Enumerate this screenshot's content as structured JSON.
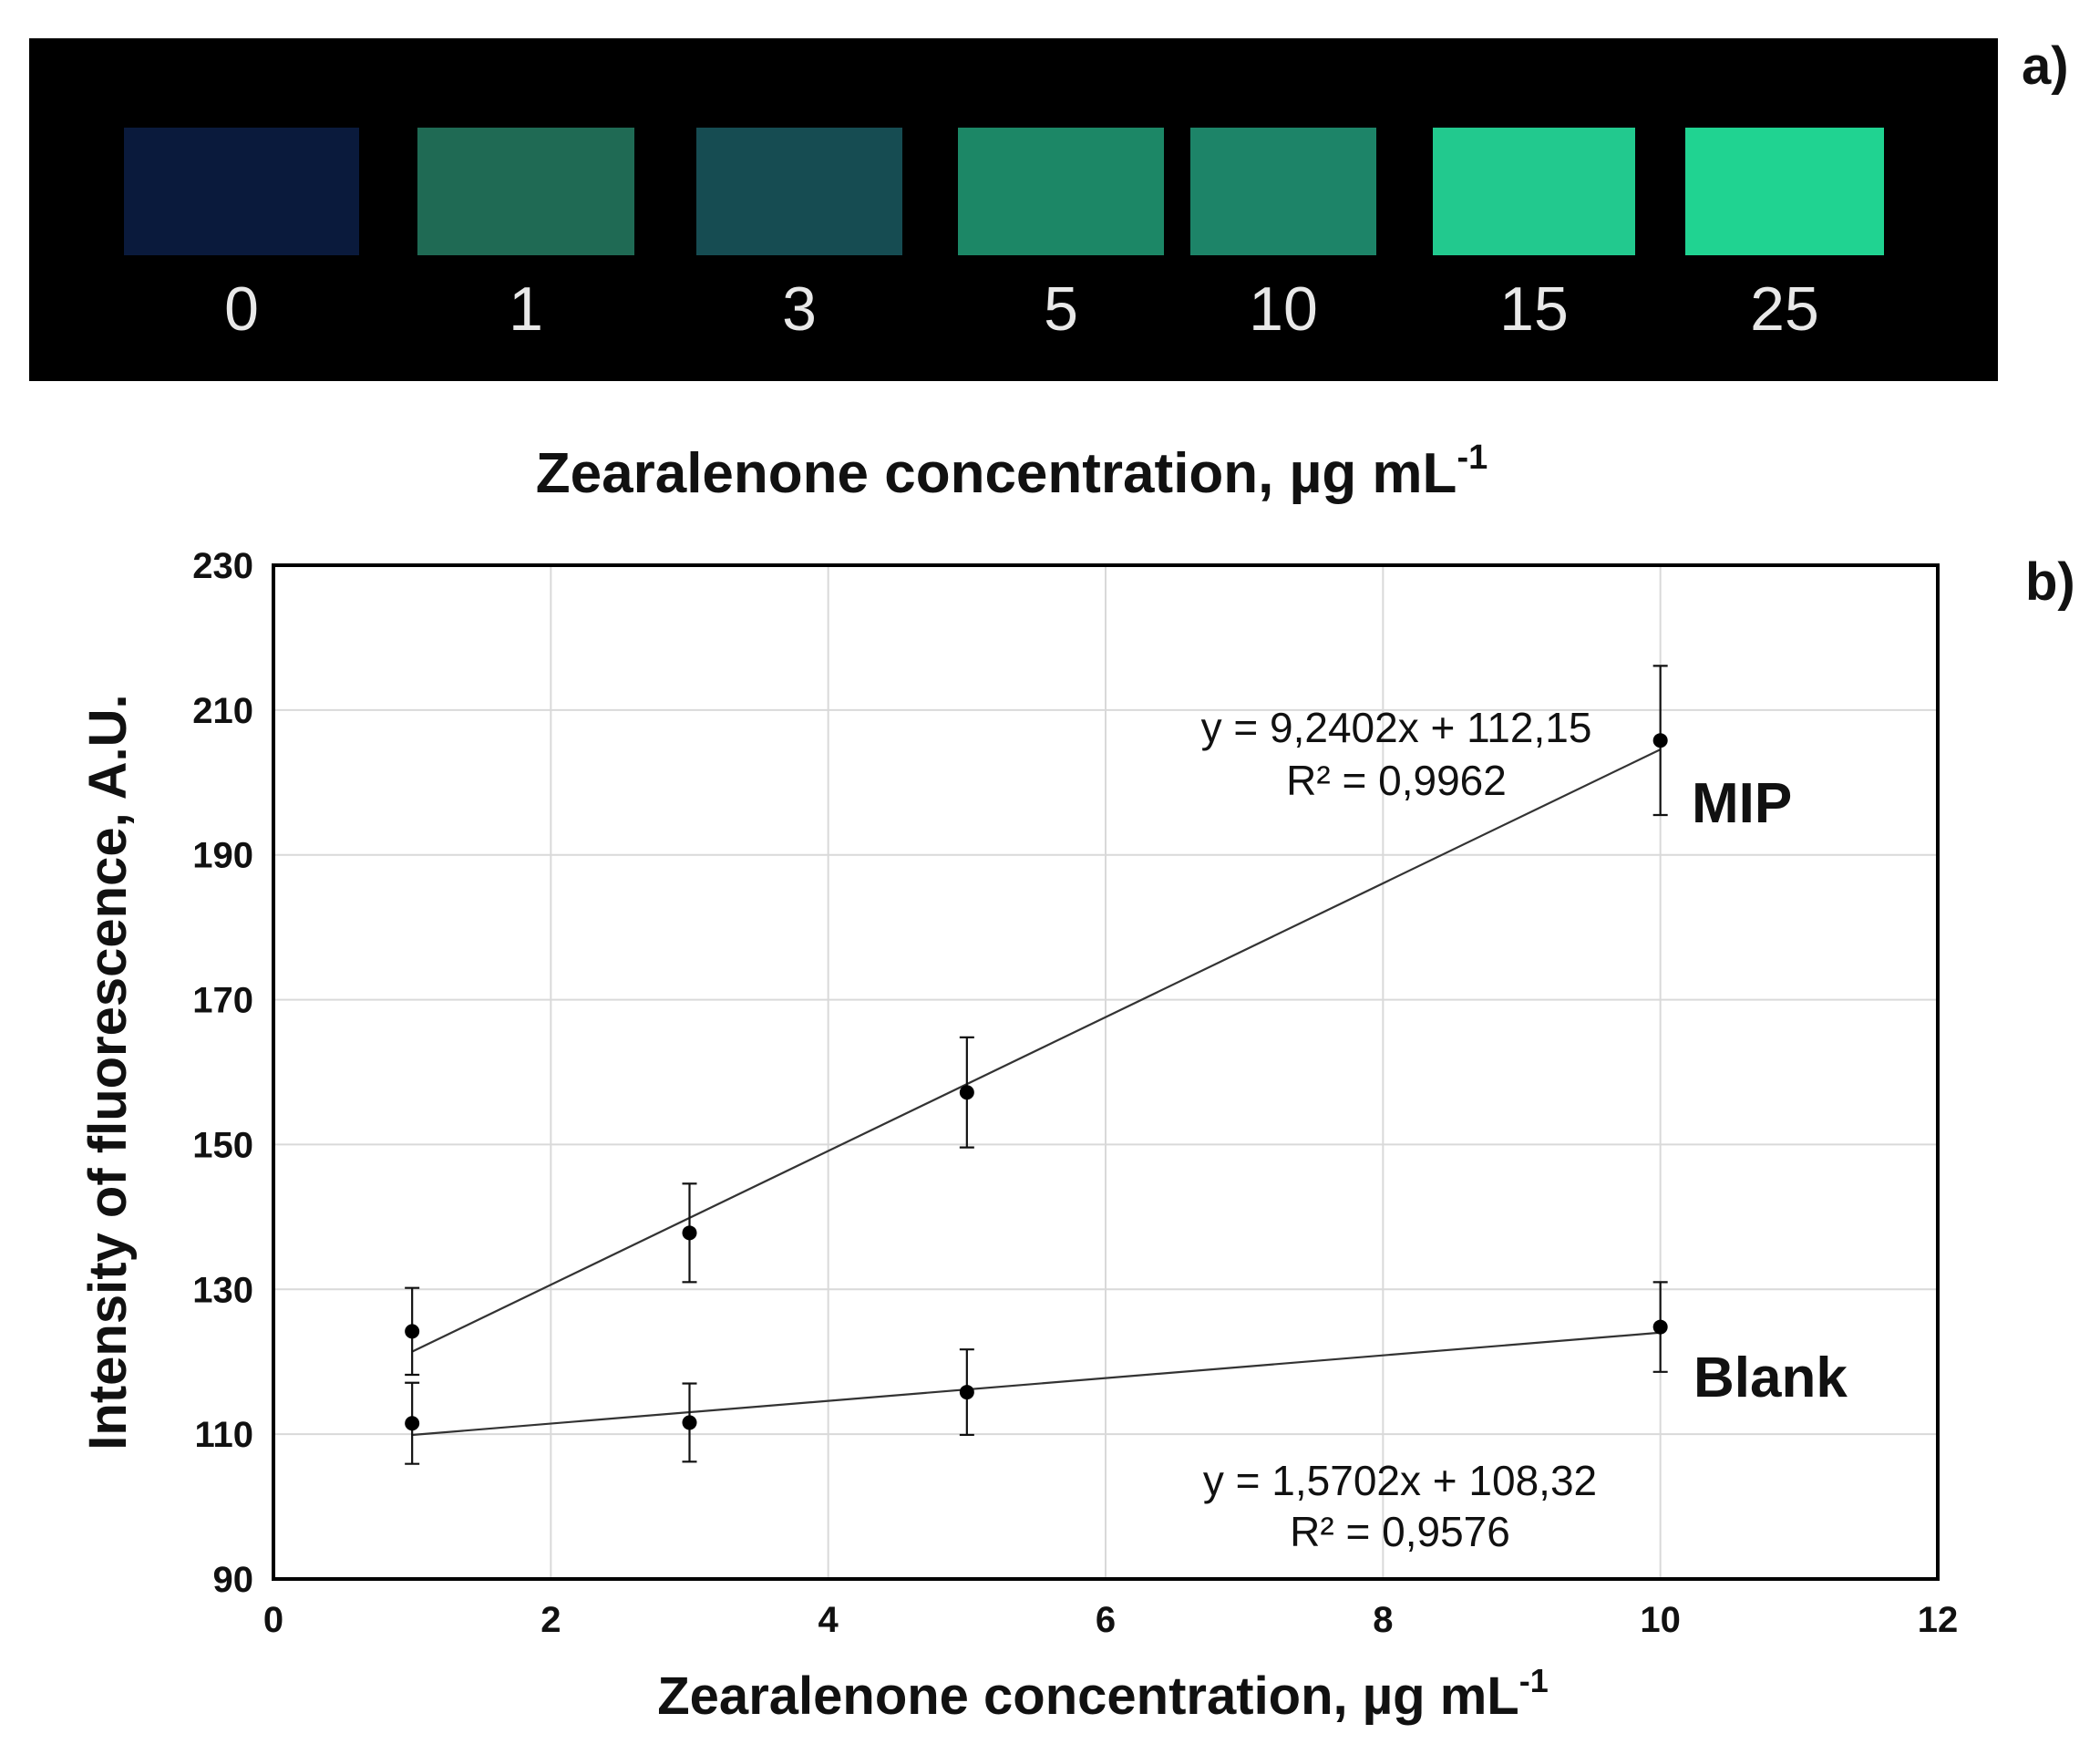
{
  "photo": {
    "panel_label": "a)",
    "strips": [
      {
        "label": "0",
        "color": "#0a1a3c"
      },
      {
        "label": "1",
        "color": "#1f6a54"
      },
      {
        "label": "3",
        "color": "#164c52"
      },
      {
        "label": "5",
        "color": "#1c8766"
      },
      {
        "label": "10",
        "color": "#1d8468"
      },
      {
        "label": "15",
        "color": "#22c98e"
      },
      {
        "label": "25",
        "color": "#20d391"
      }
    ],
    "caption": "Zearalenone concentration, µg mL",
    "caption_sup": "-1"
  },
  "chart_data": {
    "type": "scatter",
    "panel_label": "b)",
    "xlabel": "Zearalenone concentration, µg mL",
    "xlabel_sup": "-1",
    "ylabel": "Intensity of fluorescence, A.U.",
    "xlim": [
      0,
      12
    ],
    "ylim": [
      90,
      230
    ],
    "xticks": [
      0,
      2,
      4,
      6,
      8,
      10,
      12
    ],
    "yticks": [
      90,
      110,
      130,
      150,
      170,
      190,
      210,
      230
    ],
    "grid": true,
    "series": [
      {
        "name": "MIP",
        "x": [
          1,
          3,
          5,
          10
        ],
        "y": [
          124.2,
          137.8,
          157.2,
          205.8
        ],
        "yerr": [
          6.0,
          6.8,
          7.6,
          10.3
        ],
        "trendline": {
          "slope": 9.2402,
          "intercept": 112.15
        },
        "equation": "y = 9,2402x + 112,15",
        "r2": "R² = 0,9962"
      },
      {
        "name": "Blank",
        "x": [
          1,
          3,
          5,
          10
        ],
        "y": [
          111.5,
          111.6,
          115.8,
          124.8
        ],
        "yerr": [
          5.6,
          5.4,
          5.9,
          6.2
        ],
        "trendline": {
          "slope": 1.5702,
          "intercept": 108.32
        },
        "equation": "y = 1,5702x + 108,32",
        "r2": "R² = 0,9576"
      }
    ]
  }
}
